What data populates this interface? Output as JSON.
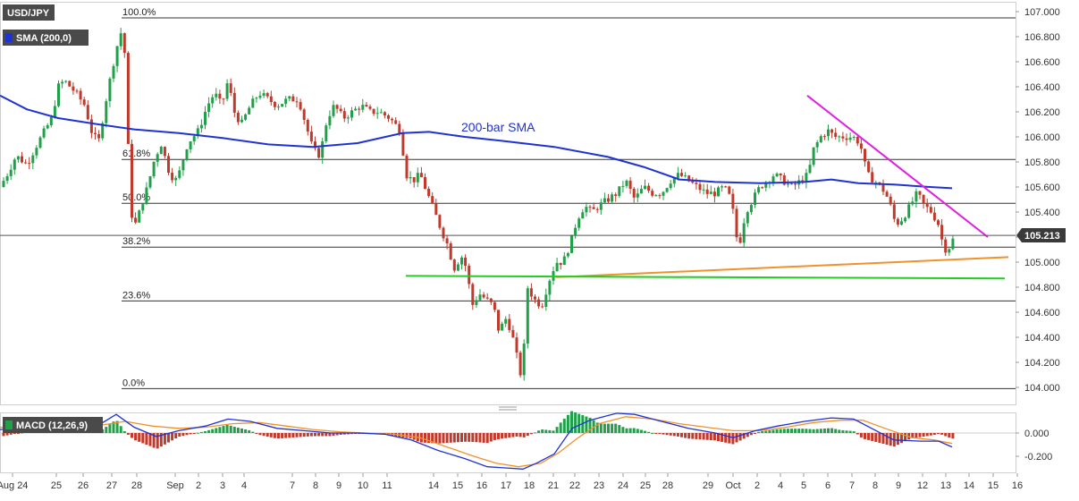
{
  "header": {
    "symbol": "USD/JPY",
    "indicator": "SMA (200,0)",
    "macd_label": "MACD (12,26,9)",
    "sma_annotation": "200-bar SMA",
    "last_price": "105.213"
  },
  "colors": {
    "bull": "#21a04a",
    "bear": "#c0392b",
    "sma": "#1f32d4",
    "resistance": "#e020e0",
    "support_orange": "#f0922a",
    "support_green": "#22cc22",
    "macd_line": "#1f32d4",
    "signal_line": "#f0922a",
    "badge_bg": "#4a4a4a",
    "price_tag_bg": "#3a3a3a"
  },
  "chart_data": [
    {
      "type": "candlestick",
      "title": "USD/JPY",
      "ylim": [
        103.94,
        107.08
      ],
      "y_ticks": [
        "107.000",
        "106.800",
        "106.600",
        "106.400",
        "106.200",
        "106.000",
        "105.800",
        "105.600",
        "105.400",
        "105.200",
        "105.000",
        "104.800",
        "104.600",
        "104.400",
        "104.200",
        "104.000"
      ],
      "y_tick_values": [
        107.0,
        106.8,
        106.6,
        106.4,
        106.2,
        106.0,
        105.8,
        105.6,
        105.4,
        105.2,
        105.0,
        104.8,
        104.6,
        104.4,
        104.2,
        104.0
      ],
      "x_labels": [
        "Aug 24",
        "25",
        "26",
        "27",
        "28",
        "Sep",
        "2",
        "3",
        "4",
        "7",
        "8",
        "9",
        "10",
        "11",
        "14",
        "15",
        "16",
        "17",
        "18",
        "21",
        "22",
        "23",
        "24",
        "25",
        "28",
        "29",
        "Oct",
        "2",
        "4",
        "5",
        "6",
        "7",
        "8",
        "9",
        "12",
        "13",
        "14",
        "15",
        "16"
      ],
      "fibonacci": [
        {
          "label": "100.0%",
          "value": 106.95
        },
        {
          "label": "61.8%",
          "value": 105.82
        },
        {
          "label": "50.0%",
          "value": 105.47
        },
        {
          "label": "38.2%",
          "value": 105.12
        },
        {
          "label": "23.6%",
          "value": 104.69
        },
        {
          "label": "0.0%",
          "value": 103.99
        }
      ],
      "sma_200": [
        [
          0,
          106.33
        ],
        [
          30,
          106.22
        ],
        [
          65,
          106.15
        ],
        [
          110,
          106.1
        ],
        [
          150,
          106.06
        ],
        [
          200,
          106.03
        ],
        [
          250,
          105.99
        ],
        [
          300,
          105.94
        ],
        [
          350,
          105.92
        ],
        [
          400,
          105.95
        ],
        [
          450,
          106.03
        ],
        [
          480,
          106.04
        ],
        [
          520,
          106.0
        ],
        [
          560,
          105.97
        ],
        [
          620,
          105.92
        ],
        [
          680,
          105.84
        ],
        [
          720,
          105.76
        ],
        [
          760,
          105.66
        ],
        [
          800,
          105.64
        ],
        [
          850,
          105.63
        ],
        [
          900,
          105.64
        ],
        [
          930,
          105.66
        ],
        [
          960,
          105.63
        ],
        [
          1000,
          105.62
        ],
        [
          1040,
          105.6
        ],
        [
          1065,
          105.59
        ]
      ],
      "resistance_line": [
        [
          903,
          106.33
        ],
        [
          1105,
          105.2
        ]
      ],
      "support_orange": [
        [
          622,
          104.88
        ],
        [
          1128,
          105.04
        ]
      ],
      "support_green": [
        [
          454,
          104.89
        ],
        [
          1124,
          104.87
        ]
      ],
      "last_price": 105.213
    },
    {
      "type": "macd",
      "title": "MACD (12,26,9)",
      "ylim": [
        -0.33,
        0.21
      ],
      "y_ticks": [
        "0.000",
        "-0.200"
      ],
      "y_tick_values": [
        0.0,
        -0.2
      ],
      "macd": [
        [
          0,
          0.03
        ],
        [
          30,
          0.05
        ],
        [
          60,
          0.05
        ],
        [
          90,
          0.08
        ],
        [
          115,
          0.09
        ],
        [
          130,
          0.16
        ],
        [
          150,
          0.05
        ],
        [
          175,
          -0.03
        ],
        [
          200,
          0.02
        ],
        [
          230,
          0.06
        ],
        [
          255,
          0.12
        ],
        [
          280,
          0.1
        ],
        [
          310,
          0.04
        ],
        [
          340,
          0.02
        ],
        [
          370,
          0.0
        ],
        [
          400,
          0.0
        ],
        [
          430,
          -0.01
        ],
        [
          460,
          -0.06
        ],
        [
          490,
          -0.15
        ],
        [
          520,
          -0.22
        ],
        [
          545,
          -0.29
        ],
        [
          565,
          -0.3
        ],
        [
          585,
          -0.31
        ],
        [
          600,
          -0.26
        ],
        [
          620,
          -0.18
        ],
        [
          640,
          0.04
        ],
        [
          660,
          0.11
        ],
        [
          690,
          0.17
        ],
        [
          710,
          0.16
        ],
        [
          740,
          0.1
        ],
        [
          770,
          0.04
        ],
        [
          800,
          0.0
        ],
        [
          820,
          -0.04
        ],
        [
          845,
          0.02
        ],
        [
          870,
          0.06
        ],
        [
          900,
          0.1
        ],
        [
          930,
          0.13
        ],
        [
          955,
          0.12
        ],
        [
          975,
          0.04
        ],
        [
          1000,
          -0.06
        ],
        [
          1030,
          -0.07
        ],
        [
          1050,
          -0.07
        ],
        [
          1065,
          -0.12
        ]
      ],
      "signal": [
        [
          0,
          0.05
        ],
        [
          40,
          0.04
        ],
        [
          80,
          0.05
        ],
        [
          115,
          0.07
        ],
        [
          140,
          0.1
        ],
        [
          170,
          0.06
        ],
        [
          200,
          0.04
        ],
        [
          230,
          0.05
        ],
        [
          260,
          0.08
        ],
        [
          290,
          0.09
        ],
        [
          320,
          0.06
        ],
        [
          350,
          0.03
        ],
        [
          380,
          0.01
        ],
        [
          410,
          0.0
        ],
        [
          440,
          -0.01
        ],
        [
          470,
          -0.04
        ],
        [
          500,
          -0.12
        ],
        [
          530,
          -0.2
        ],
        [
          555,
          -0.26
        ],
        [
          580,
          -0.29
        ],
        [
          605,
          -0.26
        ],
        [
          625,
          -0.17
        ],
        [
          645,
          -0.05
        ],
        [
          670,
          0.08
        ],
        [
          700,
          0.14
        ],
        [
          730,
          0.12
        ],
        [
          760,
          0.08
        ],
        [
          790,
          0.05
        ],
        [
          820,
          0.02
        ],
        [
          850,
          0.02
        ],
        [
          880,
          0.05
        ],
        [
          910,
          0.09
        ],
        [
          940,
          0.11
        ],
        [
          965,
          0.11
        ],
        [
          990,
          0.04
        ],
        [
          1020,
          -0.04
        ],
        [
          1045,
          -0.06
        ],
        [
          1065,
          -0.09
        ]
      ],
      "histogram_baseline": 0.0
    }
  ]
}
